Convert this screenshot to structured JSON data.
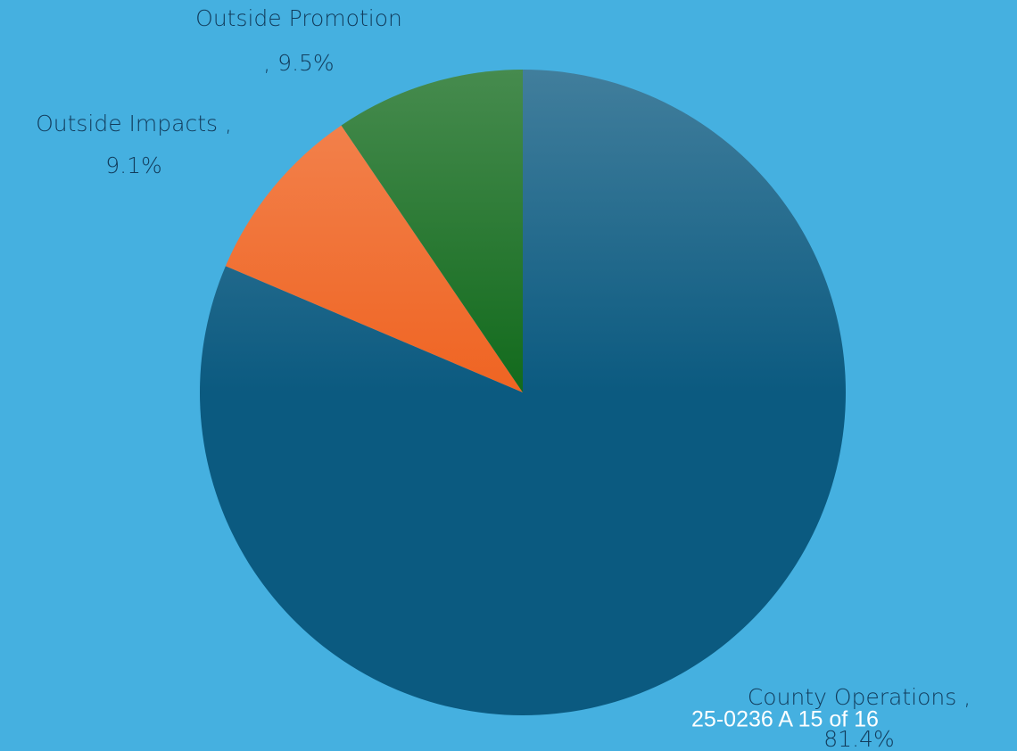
{
  "chart_data": {
    "type": "pie",
    "categories": [
      "County Operations ,",
      "Outside Impacts ,",
      "Outside Promotion"
    ],
    "values": [
      81.4,
      9.1,
      9.5
    ],
    "value_labels": [
      "81.4%",
      "9.1%",
      ", 9.5%"
    ],
    "colors": [
      "#0b5a80",
      "#ef6422",
      "#126a1c"
    ],
    "annotation": "25-0236 A 15 of 16"
  }
}
